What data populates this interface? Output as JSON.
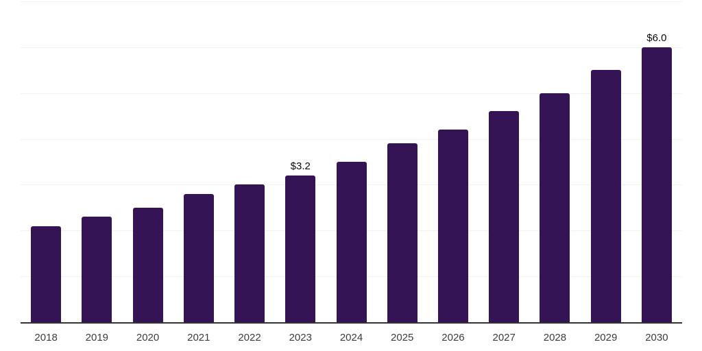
{
  "chart_data": {
    "type": "bar",
    "title": "",
    "categories": [
      "2018",
      "2019",
      "2020",
      "2021",
      "2022",
      "2023",
      "2024",
      "2025",
      "2026",
      "2027",
      "2028",
      "2029",
      "2030"
    ],
    "values": [
      2.1,
      2.3,
      2.5,
      2.8,
      3.0,
      3.2,
      3.5,
      3.9,
      4.2,
      4.6,
      5.0,
      5.5,
      6.0
    ],
    "annotations": [
      {
        "category": "2023",
        "label": "$3.2"
      },
      {
        "category": "2030",
        "label": "$6.0"
      }
    ],
    "xlabel": "",
    "ylabel": "",
    "ylim": [
      0,
      7
    ],
    "gridline_step": 1,
    "grid": true,
    "legend": false,
    "colors": {
      "bar": "#341454",
      "gridline": "#f2f2f2",
      "axis": "#333333",
      "tick_label": "#3c3c3c",
      "annotation": "#0a0a0a",
      "background": "#ffffff"
    }
  }
}
